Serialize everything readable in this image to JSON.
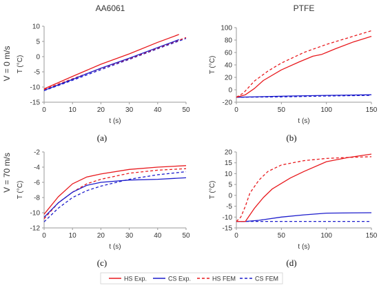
{
  "columns": {
    "left": "AA6061",
    "right": "PTFE"
  },
  "rows": {
    "top": "V = 0 m/s",
    "bottom": "V = 70 m/s"
  },
  "colors": {
    "hs": "#e8191d",
    "cs": "#1c1ccc"
  },
  "legend": [
    {
      "key": "hs_exp",
      "label": "HS Exp.",
      "color": "#e8191d",
      "dash": false
    },
    {
      "key": "cs_exp",
      "label": "CS Exp.",
      "color": "#1c1ccc",
      "dash": false
    },
    {
      "key": "hs_fem",
      "label": "HS FEM",
      "color": "#e8191d",
      "dash": true
    },
    {
      "key": "cs_fem",
      "label": "CS FEM",
      "color": "#1c1ccc",
      "dash": true
    }
  ],
  "chart_data": [
    {
      "id": "a",
      "panel_label": "(a)",
      "type": "line",
      "xlabel": "t (s)",
      "ylabel": "T (°C)",
      "xlim": [
        0,
        50
      ],
      "ylim": [
        -15,
        10
      ],
      "xticks": [
        0,
        10,
        20,
        30,
        40,
        50
      ],
      "yticks": [
        -15,
        -10,
        -5,
        0,
        5,
        10
      ],
      "grid": false,
      "series": [
        {
          "key": "hs_exp",
          "x": [
            0,
            10,
            20,
            30,
            40,
            47.5
          ],
          "y": [
            -10.6,
            -6.5,
            -2.5,
            0.9,
            4.7,
            7.3
          ]
        },
        {
          "key": "cs_exp",
          "x": [
            0,
            10,
            20,
            30,
            40,
            47.5
          ],
          "y": [
            -11.1,
            -7.5,
            -3.8,
            -0.5,
            3.0,
            5.6
          ]
        },
        {
          "key": "hs_fem",
          "x": [
            0,
            10,
            20,
            30,
            40,
            50
          ],
          "y": [
            -10.8,
            -7.3,
            -3.9,
            -0.7,
            2.8,
            6.3
          ]
        },
        {
          "key": "cs_fem",
          "x": [
            0,
            10,
            20,
            30,
            40,
            50
          ],
          "y": [
            -11.2,
            -7.8,
            -4.3,
            -0.9,
            2.6,
            6.0
          ]
        }
      ]
    },
    {
      "id": "b",
      "panel_label": "(b)",
      "type": "line",
      "xlabel": "t (s)",
      "ylabel": "T (°C)",
      "xlim": [
        0,
        150
      ],
      "ylim": [
        -20,
        100
      ],
      "xticks": [
        0,
        50,
        100,
        150
      ],
      "yticks": [
        -20,
        0,
        20,
        40,
        60,
        80,
        100
      ],
      "grid": false,
      "series": [
        {
          "key": "hs_exp",
          "x": [
            0,
            10,
            20,
            30,
            50,
            70,
            85,
            95,
            100,
            110,
            130,
            150
          ],
          "y": [
            -12,
            -8,
            2,
            15,
            32,
            45,
            54,
            57,
            60,
            66,
            77,
            86
          ]
        },
        {
          "key": "cs_exp",
          "x": [
            0,
            30,
            60,
            100,
            150
          ],
          "y": [
            -12,
            -11,
            -10,
            -9,
            -8
          ]
        },
        {
          "key": "hs_fem",
          "x": [
            0,
            8,
            20,
            35,
            50,
            75,
            100,
            125,
            150
          ],
          "y": [
            -12,
            -5,
            14,
            30,
            43,
            60,
            73,
            84,
            95
          ]
        },
        {
          "key": "cs_fem",
          "x": [
            0,
            50,
            100,
            150
          ],
          "y": [
            -12,
            -11.5,
            -10,
            -9
          ]
        }
      ]
    },
    {
      "id": "c",
      "panel_label": "(c)",
      "type": "line",
      "xlabel": "t (s)",
      "ylabel": "T (°C)",
      "xlim": [
        0,
        50
      ],
      "ylim": [
        -12,
        -2
      ],
      "xticks": [
        0,
        10,
        20,
        30,
        40,
        50
      ],
      "yticks": [
        -12,
        -10,
        -8,
        -6,
        -4,
        -2
      ],
      "grid": false,
      "series": [
        {
          "key": "hs_exp",
          "x": [
            0,
            5,
            10,
            15,
            20,
            30,
            40,
            50
          ],
          "y": [
            -10.2,
            -7.9,
            -6.2,
            -5.3,
            -4.9,
            -4.3,
            -4.0,
            -3.8
          ]
        },
        {
          "key": "cs_exp",
          "x": [
            0,
            5,
            10,
            15,
            20,
            30,
            40,
            50
          ],
          "y": [
            -10.6,
            -8.7,
            -7.3,
            -6.4,
            -6.0,
            -5.7,
            -5.6,
            -5.4
          ]
        },
        {
          "key": "hs_fem",
          "x": [
            0,
            5,
            10,
            15,
            20,
            30,
            40,
            50
          ],
          "y": [
            -10.8,
            -8.7,
            -7.3,
            -6.2,
            -5.6,
            -4.8,
            -4.4,
            -4.2
          ]
        },
        {
          "key": "cs_fem",
          "x": [
            0,
            5,
            10,
            15,
            20,
            30,
            40,
            50
          ],
          "y": [
            -11.2,
            -9.4,
            -8.0,
            -7.1,
            -6.5,
            -5.6,
            -5.0,
            -4.6
          ]
        }
      ]
    },
    {
      "id": "d",
      "panel_label": "(d)",
      "type": "line",
      "xlabel": "t (s)",
      "ylabel": "T (°C)",
      "xlim": [
        0,
        150
      ],
      "ylim": [
        -15,
        20
      ],
      "xticks": [
        0,
        50,
        100,
        150
      ],
      "yticks": [
        -15,
        -10,
        -5,
        0,
        5,
        10,
        15,
        20
      ],
      "grid": false,
      "series": [
        {
          "key": "hs_exp",
          "x": [
            0,
            10,
            20,
            30,
            40,
            50,
            60,
            75,
            100,
            125,
            150
          ],
          "y": [
            -12,
            -12,
            -6,
            -1,
            3,
            5.5,
            8,
            11,
            15.5,
            17.5,
            19
          ]
        },
        {
          "key": "cs_exp",
          "x": [
            0,
            10,
            25,
            50,
            75,
            100,
            150
          ],
          "y": [
            -12,
            -12,
            -11.5,
            -10,
            -9,
            -8.2,
            -8
          ]
        },
        {
          "key": "hs_fem",
          "x": [
            0,
            5,
            10,
            15,
            25,
            35,
            50,
            75,
            100,
            125,
            150
          ],
          "y": [
            -12,
            -10,
            -5,
            1,
            7,
            11,
            14,
            16,
            17,
            17.5,
            17.8
          ]
        },
        {
          "key": "cs_fem",
          "x": [
            0,
            75,
            150
          ],
          "y": [
            -12,
            -12,
            -12
          ]
        }
      ]
    }
  ]
}
